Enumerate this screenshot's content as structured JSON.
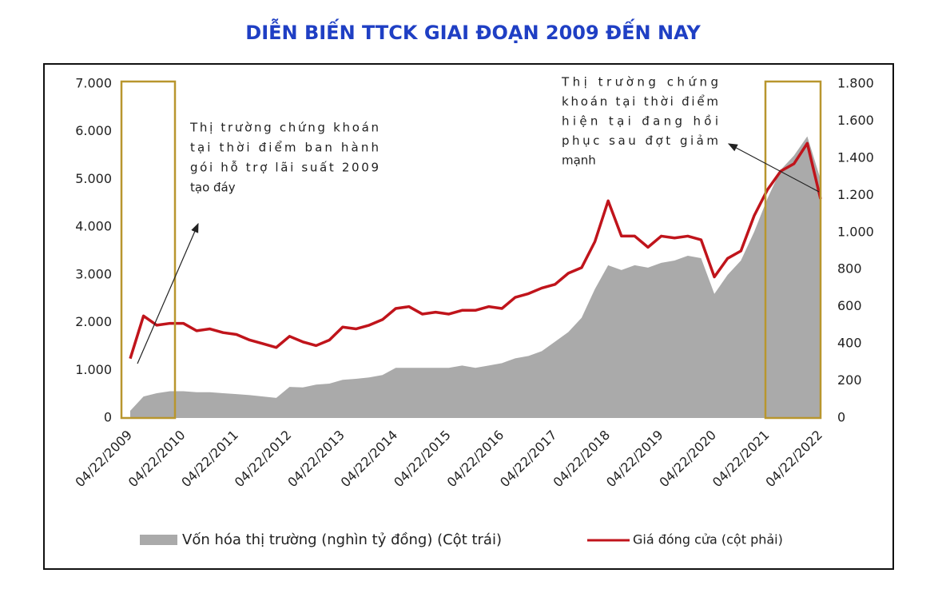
{
  "chart_data": {
    "type": "area-line",
    "title": "DIỄN BIẾN TTCK GIAI ĐOẠN 2009 ĐẾN NAY",
    "categories": [
      "04/22/2009",
      null,
      null,
      null,
      "04/22/2010",
      null,
      null,
      null,
      "04/22/2011",
      null,
      null,
      null,
      "04/22/2012",
      null,
      null,
      null,
      "04/22/2013",
      null,
      null,
      null,
      "04/22/2014",
      null,
      null,
      null,
      "04/22/2015",
      null,
      null,
      null,
      "04/22/2016",
      null,
      null,
      null,
      "04/22/2017",
      null,
      null,
      null,
      "04/22/2018",
      null,
      null,
      null,
      "04/22/2019",
      null,
      null,
      null,
      "04/22/2020",
      null,
      null,
      null,
      "04/22/2021",
      null,
      null,
      null,
      "04/22/2022"
    ],
    "series": [
      {
        "name": "Vốn hóa thị trường (nghìn tỷ đồng) (Cột trái)",
        "color": "#aaaaaa",
        "kind": "area",
        "values": [
          150,
          450,
          520,
          560,
          560,
          540,
          540,
          520,
          500,
          480,
          450,
          420,
          650,
          640,
          700,
          720,
          800,
          820,
          850,
          900,
          1050,
          1050,
          1050,
          1050,
          1050,
          1100,
          1050,
          1100,
          1150,
          1250,
          1300,
          1400,
          1600,
          1800,
          2100,
          2700,
          3200,
          3100,
          3200,
          3150,
          3250,
          3300,
          3400,
          3350,
          2600,
          3000,
          3300,
          3900,
          4600,
          5200,
          5500,
          5900,
          5000
        ]
      },
      {
        "name": "Giá đóng cửa (cột phải)",
        "color": "#c0141b",
        "kind": "line",
        "axis": "y2",
        "values": [
          320,
          550,
          500,
          510,
          510,
          470,
          480,
          460,
          450,
          420,
          400,
          380,
          440,
          410,
          390,
          420,
          490,
          480,
          500,
          530,
          590,
          600,
          560,
          570,
          560,
          580,
          580,
          600,
          590,
          650,
          670,
          700,
          720,
          780,
          810,
          950,
          1170,
          980,
          980,
          920,
          980,
          970,
          980,
          960,
          760,
          860,
          900,
          1090,
          1230,
          1330,
          1370,
          1480,
          1180
        ]
      }
    ],
    "ylim": [
      0,
      7000
    ],
    "yticks": [
      0,
      {
        "value": 1000,
        "label": "1.000"
      },
      {
        "value": 2000,
        "label": "2.000"
      },
      {
        "value": 3000,
        "label": "3.000"
      },
      {
        "value": 4000,
        "label": "4.000"
      },
      {
        "value": 5000,
        "label": "5.000"
      },
      {
        "value": 6000,
        "label": "6.000"
      },
      {
        "value": 7000,
        "label": "7.000"
      }
    ],
    "y2lim": [
      0,
      1800
    ],
    "y2ticks": [
      0,
      200,
      400,
      600,
      800,
      {
        "value": 1000,
        "label": "1.000"
      },
      {
        "value": 1200,
        "label": "1.200"
      },
      {
        "value": 1400,
        "label": "1.400"
      },
      {
        "value": 1600,
        "label": "1.600"
      },
      {
        "value": 1800,
        "label": "1.800"
      }
    ],
    "annotations": [
      {
        "lines": [
          "Thị trường chứng khoán",
          "tại thời điểm ban hành",
          "gói hỗ trợ lãi suất 2009",
          "tạo đáy"
        ]
      },
      {
        "lines": [
          "Thị trường chứng",
          "khoán tại thời điểm",
          "hiện tại đang hồi",
          "phục sau đợt giảm",
          "mạnh"
        ]
      }
    ]
  }
}
